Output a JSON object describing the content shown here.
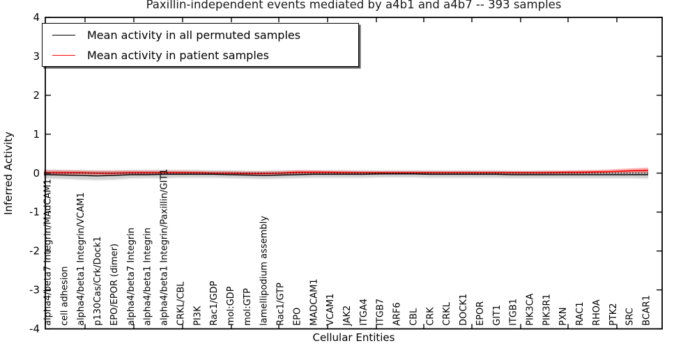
{
  "title": "Paxillin-independent events mediated by a4b1 and a4b7 -- 393 samples",
  "axes": {
    "xlabel": "Cellular Entities",
    "ylabel": "Inferred Activity"
  },
  "legend": {
    "entries": [
      {
        "label": "Mean activity in all permuted samples",
        "color": "#000000"
      },
      {
        "label": "Mean activity in patient samples",
        "color": "#ff0000"
      }
    ]
  },
  "chart_data": {
    "type": "line",
    "title": "Paxillin-independent events mediated by a4b1 and a4b7 -- 393 samples",
    "xlabel": "Cellular Entities",
    "ylabel": "Inferred Activity",
    "ylim": [
      -4,
      4
    ],
    "yticks": [
      4,
      3,
      2,
      1,
      0,
      -1,
      -2,
      -3,
      -4
    ],
    "grid": false,
    "legend_position": "upper left",
    "background": "#ffffff",
    "colors": {
      "permuted_line": "#000000",
      "patient_line": "#ff0000",
      "permuted_band": "rgba(0,0,0,0.13)",
      "patient_band": "rgba(255,0,0,0.30)",
      "zero_line": "#000000"
    },
    "categories": [
      "alpha4/beta7 Integrin/MAdCAM1",
      "cell adhesion",
      "alpha4/beta1 Integrin/VCAM1",
      "p130Cas/Crk/Dock1",
      "EPO/EPOR (dimer)",
      "alpha4/beta7 Integrin",
      "alpha4/beta1 Integrin",
      "alpha4/beta1 Integrin/Paxillin/GIT1",
      "CRKL/CBL",
      "PI3K",
      "Rac1/GDP",
      "mol:GDP",
      "mol:GTP",
      "lamellipodium assembly",
      "Rac1/GTP",
      "EPO",
      "MADCAM1",
      "VCAM1",
      "JAK2",
      "ITGA4",
      "ITGB7",
      "ARF6",
      "CBL",
      "CRK",
      "CRKL",
      "DOCK1",
      "EPOR",
      "GIT1",
      "ITGB1",
      "PIK3CA",
      "PIK3R1",
      "PXN",
      "RAC1",
      "RHOA",
      "PTK2",
      "SRC",
      "BCAR1"
    ],
    "series": [
      {
        "name": "Mean activity in all permuted samples",
        "color": "#000000",
        "values": [
          -0.04,
          -0.05,
          -0.06,
          -0.07,
          -0.06,
          -0.04,
          -0.04,
          -0.03,
          -0.03,
          -0.03,
          -0.03,
          -0.04,
          -0.05,
          -0.06,
          -0.05,
          -0.04,
          -0.03,
          -0.03,
          -0.03,
          -0.03,
          -0.02,
          -0.02,
          -0.02,
          -0.03,
          -0.03,
          -0.03,
          -0.03,
          -0.03,
          -0.04,
          -0.04,
          -0.04,
          -0.04,
          -0.04,
          -0.04,
          -0.04,
          -0.04,
          -0.04
        ]
      },
      {
        "name": "Mean activity in patient samples",
        "color": "#ff0000",
        "values": [
          0.01,
          0.01,
          0.01,
          0.0,
          0.0,
          0.01,
          0.01,
          0.01,
          0.01,
          0.01,
          0.0,
          0.0,
          -0.01,
          -0.01,
          0.0,
          0.02,
          0.02,
          0.02,
          0.01,
          0.01,
          0.01,
          0.01,
          0.01,
          0.01,
          0.01,
          0.01,
          0.01,
          0.01,
          0.01,
          0.01,
          0.01,
          0.02,
          0.02,
          0.03,
          0.04,
          0.06,
          0.07
        ]
      }
    ],
    "bands": [
      {
        "name": "permuted-samples-range",
        "color": "rgba(0,0,0,0.13)",
        "low": [
          -0.13,
          -0.14,
          -0.16,
          -0.17,
          -0.16,
          -0.13,
          -0.12,
          -0.12,
          -0.11,
          -0.11,
          -0.11,
          -0.12,
          -0.13,
          -0.14,
          -0.13,
          -0.12,
          -0.11,
          -0.11,
          -0.11,
          -0.11,
          -0.1,
          -0.1,
          -0.1,
          -0.11,
          -0.11,
          -0.11,
          -0.11,
          -0.11,
          -0.12,
          -0.12,
          -0.12,
          -0.12,
          -0.12,
          -0.12,
          -0.12,
          -0.12,
          -0.13
        ],
        "high": [
          0.08,
          0.07,
          0.07,
          0.06,
          0.06,
          0.07,
          0.07,
          0.07,
          0.07,
          0.07,
          0.06,
          0.06,
          0.05,
          0.05,
          0.06,
          0.06,
          0.06,
          0.06,
          0.06,
          0.06,
          0.06,
          0.06,
          0.06,
          0.06,
          0.06,
          0.06,
          0.06,
          0.06,
          0.05,
          0.05,
          0.05,
          0.05,
          0.05,
          0.05,
          0.05,
          0.05,
          0.06
        ]
      },
      {
        "name": "patient-samples-range",
        "color": "rgba(255,0,0,0.30)",
        "low": [
          -0.04,
          -0.04,
          -0.04,
          -0.05,
          -0.05,
          -0.04,
          -0.03,
          -0.03,
          -0.03,
          -0.03,
          -0.04,
          -0.04,
          -0.05,
          -0.05,
          -0.04,
          -0.02,
          -0.02,
          -0.02,
          -0.03,
          -0.03,
          -0.03,
          -0.03,
          -0.03,
          -0.03,
          -0.03,
          -0.03,
          -0.03,
          -0.03,
          -0.03,
          -0.03,
          -0.03,
          -0.02,
          -0.02,
          -0.01,
          0.0,
          0.01,
          0.01
        ],
        "high": [
          0.07,
          0.07,
          0.06,
          0.06,
          0.06,
          0.06,
          0.06,
          0.06,
          0.06,
          0.05,
          0.05,
          0.05,
          0.04,
          0.04,
          0.05,
          0.07,
          0.07,
          0.06,
          0.06,
          0.05,
          0.05,
          0.05,
          0.05,
          0.05,
          0.05,
          0.05,
          0.05,
          0.05,
          0.05,
          0.05,
          0.06,
          0.06,
          0.07,
          0.08,
          0.1,
          0.12,
          0.14
        ]
      }
    ],
    "zero_line": {
      "y": 0,
      "style": "dotted",
      "color": "#000000"
    }
  }
}
